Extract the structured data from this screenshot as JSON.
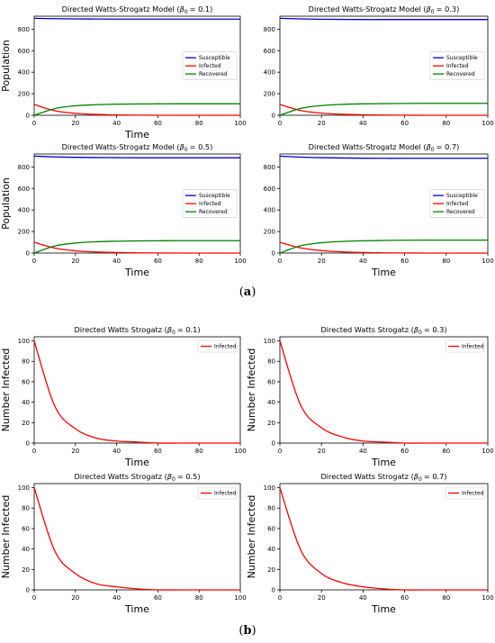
{
  "captions": {
    "a": "a",
    "b": "b"
  },
  "colors": {
    "susceptible": "#0000cc",
    "infected": "#ff0000",
    "recovered": "#008000",
    "axis": "#000000"
  },
  "chart_data": [
    {
      "type": "line",
      "group": "a",
      "title": "Directed Watts-Strogatz Model (",
      "beta_label": "β",
      "beta_sub": "0",
      "beta_value": "= 0.1)",
      "xlabel": "Time",
      "ylabel": "Population",
      "xlim": [
        0,
        100
      ],
      "ylim": [
        0,
        920
      ],
      "xticks": [
        "0",
        "20",
        "40",
        "60",
        "80",
        "100"
      ],
      "yticks": [
        "0",
        "200",
        "400",
        "600",
        "800"
      ],
      "legend_position": "center-right",
      "x": [
        0,
        10,
        20,
        30,
        40,
        50,
        60,
        70,
        80,
        90,
        100
      ],
      "series": [
        {
          "name": "Susceptible",
          "color": "#0000cc",
          "values": [
            900,
            897,
            895,
            894,
            893,
            893,
            893,
            893,
            893,
            893,
            893
          ]
        },
        {
          "name": "Infected",
          "color": "#ff0000",
          "values": [
            100,
            42,
            18,
            8,
            3,
            1,
            0,
            0,
            0,
            0,
            0
          ]
        },
        {
          "name": "Recovered",
          "color": "#008000",
          "values": [
            0,
            62,
            88,
            98,
            103,
            105,
            106,
            107,
            107,
            107,
            107
          ]
        }
      ]
    },
    {
      "type": "line",
      "group": "a",
      "title": "Directed Watts-Strogatz Model (",
      "beta_label": "β",
      "beta_sub": "0",
      "beta_value": "= 0.3)",
      "xlabel": "",
      "ylabel": "",
      "xlim": [
        0,
        100
      ],
      "ylim": [
        0,
        920
      ],
      "xticks": [
        "0",
        "20",
        "40",
        "60",
        "80",
        "100"
      ],
      "yticks": [
        "0",
        "200",
        "400",
        "600",
        "800"
      ],
      "legend_position": "center-right",
      "x": [
        0,
        10,
        20,
        30,
        40,
        50,
        60,
        70,
        80,
        90,
        100
      ],
      "series": [
        {
          "name": "Susceptible",
          "color": "#0000cc",
          "values": [
            900,
            895,
            892,
            890,
            889,
            889,
            889,
            889,
            889,
            889,
            889
          ]
        },
        {
          "name": "Infected",
          "color": "#ff0000",
          "values": [
            100,
            44,
            20,
            9,
            4,
            2,
            1,
            0,
            0,
            0,
            0
          ]
        },
        {
          "name": "Recovered",
          "color": "#008000",
          "values": [
            0,
            64,
            90,
            101,
            106,
            108,
            110,
            111,
            111,
            111,
            111
          ]
        }
      ]
    },
    {
      "type": "line",
      "group": "a",
      "title": "Directed Watts-Strogatz Model (",
      "beta_label": "β",
      "beta_sub": "0",
      "beta_value": "= 0.5)",
      "xlabel": "Time",
      "ylabel": "Population",
      "xlim": [
        0,
        100
      ],
      "ylim": [
        0,
        920
      ],
      "xticks": [
        "0",
        "20",
        "40",
        "60",
        "80",
        "100"
      ],
      "yticks": [
        "0",
        "200",
        "400",
        "600",
        "800"
      ],
      "legend_position": "center-right",
      "x": [
        0,
        10,
        20,
        30,
        40,
        50,
        60,
        70,
        80,
        90,
        100
      ],
      "series": [
        {
          "name": "Susceptible",
          "color": "#0000cc",
          "values": [
            900,
            893,
            889,
            887,
            886,
            885,
            885,
            885,
            885,
            885,
            885
          ]
        },
        {
          "name": "Infected",
          "color": "#ff0000",
          "values": [
            100,
            46,
            21,
            10,
            5,
            2,
            1,
            0,
            0,
            0,
            0
          ]
        },
        {
          "name": "Recovered",
          "color": "#008000",
          "values": [
            0,
            66,
            93,
            105,
            110,
            113,
            114,
            115,
            115,
            115,
            115
          ]
        }
      ]
    },
    {
      "type": "line",
      "group": "a",
      "title": "Directed Watts-Strogatz Model (",
      "beta_label": "β",
      "beta_sub": "0",
      "beta_value": "= 0.7)",
      "xlabel": "Time",
      "ylabel": "",
      "xlim": [
        0,
        100
      ],
      "ylim": [
        0,
        920
      ],
      "xticks": [
        "0",
        "20",
        "40",
        "60",
        "80",
        "100"
      ],
      "yticks": [
        "0",
        "200",
        "400",
        "600",
        "800"
      ],
      "legend_position": "center-right",
      "x": [
        0,
        10,
        20,
        30,
        40,
        50,
        60,
        70,
        80,
        90,
        100
      ],
      "series": [
        {
          "name": "Susceptible",
          "color": "#0000cc",
          "values": [
            900,
            891,
            886,
            883,
            881,
            880,
            880,
            880,
            880,
            880,
            880
          ]
        },
        {
          "name": "Infected",
          "color": "#ff0000",
          "values": [
            100,
            48,
            23,
            11,
            5,
            2,
            1,
            0,
            0,
            0,
            0
          ]
        },
        {
          "name": "Recovered",
          "color": "#008000",
          "values": [
            0,
            68,
            96,
            108,
            114,
            117,
            119,
            120,
            120,
            120,
            120
          ]
        }
      ]
    },
    {
      "type": "line",
      "group": "b",
      "title": "Directed Watts Strogatz (",
      "beta_label": "β",
      "beta_sub": "0",
      "beta_value": "= 0.1)",
      "xlabel": "Time",
      "ylabel": "Number Infected",
      "xlim": [
        0,
        100
      ],
      "ylim": [
        0,
        104
      ],
      "xticks": [
        "0",
        "20",
        "40",
        "60",
        "80",
        "100"
      ],
      "yticks": [
        "0",
        "20",
        "40",
        "60",
        "80",
        "100"
      ],
      "legend_position": "top-right",
      "x": [
        0,
        10,
        20,
        30,
        40,
        50,
        60,
        70,
        80,
        90,
        100
      ],
      "series": [
        {
          "name": "Infected",
          "color": "#ff0000",
          "values": [
            100,
            36,
            14,
            5,
            2,
            1,
            0,
            0,
            0,
            0,
            0
          ]
        }
      ]
    },
    {
      "type": "line",
      "group": "b",
      "title": "Directed Watts Strogatz (",
      "beta_label": "β",
      "beta_sub": "0",
      "beta_value": "= 0.3)",
      "xlabel": "Time",
      "ylabel": "Number Infected",
      "xlim": [
        0,
        100
      ],
      "ylim": [
        0,
        104
      ],
      "xticks": [
        "0",
        "20",
        "40",
        "60",
        "80",
        "100"
      ],
      "yticks": [
        "0",
        "20",
        "40",
        "60",
        "80",
        "100"
      ],
      "legend_position": "top-right",
      "x": [
        0,
        10,
        20,
        30,
        40,
        50,
        60,
        70,
        80,
        90,
        100
      ],
      "series": [
        {
          "name": "Infected",
          "color": "#ff0000",
          "values": [
            100,
            37,
            15,
            6,
            2,
            1,
            0,
            0,
            0,
            0,
            0
          ]
        }
      ]
    },
    {
      "type": "line",
      "group": "b",
      "title": "Directed Watts Strogatz (",
      "beta_label": "β",
      "beta_sub": "0",
      "beta_value": "= 0.5)",
      "xlabel": "Time",
      "ylabel": "Number Infected",
      "xlim": [
        0,
        100
      ],
      "ylim": [
        0,
        104
      ],
      "xticks": [
        "0",
        "20",
        "40",
        "60",
        "80",
        "100"
      ],
      "yticks": [
        "0",
        "20",
        "40",
        "60",
        "80",
        "100"
      ],
      "legend_position": "top-right",
      "x": [
        0,
        10,
        20,
        30,
        40,
        50,
        60,
        70,
        80,
        90,
        100
      ],
      "series": [
        {
          "name": "Infected",
          "color": "#ff0000",
          "values": [
            100,
            38,
            16,
            6,
            3,
            1,
            0,
            0,
            0,
            0,
            0
          ]
        }
      ]
    },
    {
      "type": "line",
      "group": "b",
      "title": "Directed Watts Strogatz (",
      "beta_label": "β",
      "beta_sub": "0",
      "beta_value": "= 0.7)",
      "xlabel": "Time",
      "ylabel": "Number Infected",
      "xlim": [
        0,
        100
      ],
      "ylim": [
        0,
        104
      ],
      "xticks": [
        "0",
        "20",
        "40",
        "60",
        "80",
        "100"
      ],
      "yticks": [
        "0",
        "20",
        "40",
        "60",
        "80",
        "100"
      ],
      "legend_position": "top-right",
      "x": [
        0,
        10,
        20,
        30,
        40,
        50,
        60,
        70,
        80,
        90,
        100
      ],
      "series": [
        {
          "name": "Infected",
          "color": "#ff0000",
          "values": [
            100,
            39,
            16,
            7,
            3,
            1,
            0,
            0,
            0,
            0,
            0
          ]
        }
      ]
    }
  ]
}
